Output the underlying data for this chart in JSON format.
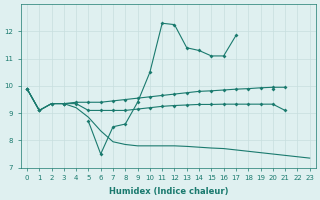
{
  "x": [
    0,
    1,
    2,
    3,
    4,
    5,
    6,
    7,
    8,
    9,
    10,
    11,
    12,
    13,
    14,
    15,
    16,
    17,
    18,
    19,
    20,
    21,
    22,
    23
  ],
  "line_spiky": [
    9.9,
    9.1,
    null,
    9.35,
    null,
    8.7,
    7.5,
    8.5,
    8.6,
    9.4,
    10.5,
    12.3,
    12.25,
    11.4,
    11.3,
    11.1,
    11.1,
    11.85,
    null,
    null,
    9.9,
    null,
    null,
    null
  ],
  "line_upper": [
    9.9,
    9.1,
    9.35,
    9.35,
    9.4,
    9.4,
    9.4,
    9.45,
    9.5,
    9.55,
    9.6,
    9.65,
    9.7,
    9.75,
    9.8,
    9.82,
    9.85,
    9.88,
    9.9,
    9.93,
    9.95,
    9.95,
    null,
    null
  ],
  "line_mid": [
    9.9,
    9.1,
    9.35,
    9.35,
    9.35,
    9.1,
    9.1,
    9.1,
    9.1,
    9.15,
    9.2,
    9.25,
    9.28,
    9.3,
    9.32,
    9.32,
    9.33,
    9.33,
    9.33,
    9.33,
    9.33,
    9.1,
    null,
    null
  ],
  "line_lower": [
    9.9,
    9.1,
    9.35,
    9.35,
    9.2,
    8.85,
    8.35,
    7.95,
    7.85,
    7.8,
    7.8,
    7.8,
    7.8,
    7.78,
    7.75,
    7.72,
    7.7,
    7.65,
    7.6,
    7.55,
    7.5,
    7.45,
    7.4,
    7.35
  ],
  "ylim": [
    7,
    13
  ],
  "yticks": [
    7,
    8,
    9,
    10,
    11,
    12
  ],
  "xticks": [
    0,
    1,
    2,
    3,
    4,
    5,
    6,
    7,
    8,
    9,
    10,
    11,
    12,
    13,
    14,
    15,
    16,
    17,
    18,
    19,
    20,
    21,
    22,
    23
  ],
  "xlabel": "Humidex (Indice chaleur)",
  "color": "#1a7a6e",
  "bg_color": "#dff0f0",
  "grid_color": "#c8dede"
}
